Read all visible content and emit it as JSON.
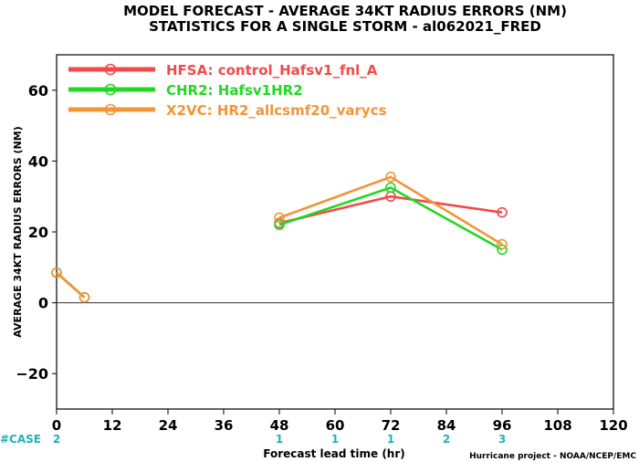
{
  "chart_data": {
    "type": "line",
    "title": "MODEL FORECAST - AVERAGE 34KT RADIUS ERRORS (NM)",
    "subtitle": "STATISTICS FOR A SINGLE STORM - al062021_FRED",
    "xlabel": "Forecast lead time (hr)",
    "ylabel": "AVERAGE 34KT RADIUS ERRORS (NM)",
    "xlim": [
      0,
      120
    ],
    "ylim": [
      -30,
      70
    ],
    "xticks": [
      0,
      12,
      24,
      36,
      48,
      60,
      72,
      84,
      96,
      108,
      120
    ],
    "yticks": [
      -20,
      0,
      20,
      40,
      60
    ],
    "zero_line": true,
    "grid": false,
    "legend_position": "top-left",
    "series": [
      {
        "name": "HFSA: control_Hafsv1_fnl_A",
        "color": "#f24a4a",
        "points": [
          [
            0,
            8.5
          ],
          [
            6,
            1.5
          ],
          [
            48,
            22.5
          ],
          [
            72,
            30
          ],
          [
            96,
            25.5
          ]
        ],
        "segments": [
          [
            0,
            1
          ],
          [
            2,
            3,
            4
          ]
        ]
      },
      {
        "name": "CHR2: Hafsv1HR2",
        "color": "#22d822",
        "points": [
          [
            0,
            8.5
          ],
          [
            6,
            1.5
          ],
          [
            48,
            22
          ],
          [
            72,
            32.5
          ],
          [
            96,
            15
          ]
        ],
        "segments": [
          [
            0,
            1
          ],
          [
            2,
            3,
            4
          ]
        ]
      },
      {
        "name": "X2VC: HR2_allcsmf20_varycs",
        "color": "#f0963a",
        "points": [
          [
            0,
            8.5
          ],
          [
            6,
            1.5
          ],
          [
            48,
            24
          ],
          [
            72,
            35.5
          ],
          [
            96,
            16.5
          ]
        ],
        "segments": [
          [
            0,
            1
          ],
          [
            2,
            3,
            4
          ]
        ]
      }
    ],
    "cases": {
      "label": "#CASE",
      "color": "#20b2b8",
      "entries": [
        {
          "x": 0,
          "count": "2"
        },
        {
          "x": 48,
          "count": "1"
        },
        {
          "x": 60,
          "count": "1"
        },
        {
          "x": 72,
          "count": "1"
        },
        {
          "x": 84,
          "count": "2"
        },
        {
          "x": 96,
          "count": "3"
        }
      ]
    },
    "credit": "Hurricane project - NOAA/NCEP/EMC"
  }
}
